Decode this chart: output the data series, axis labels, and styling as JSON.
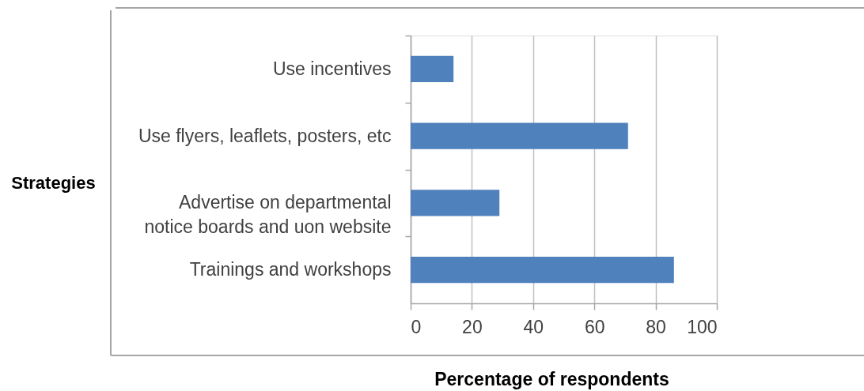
{
  "chart_data": {
    "type": "bar",
    "orientation": "horizontal",
    "xlabel": "Percentage of respondents",
    "ylabel": "Strategies",
    "categories": [
      "Use incentives",
      "Use flyers, leaflets, posters, etc",
      "Advertise on departmental\nnotice boards and uon website",
      "Trainings and workshops"
    ],
    "values": [
      14,
      71,
      29,
      86
    ],
    "color": "#4f81bd",
    "xlim": [
      0,
      100
    ],
    "xticks": [
      0,
      20,
      40,
      60,
      80,
      100
    ],
    "grid": "x"
  }
}
